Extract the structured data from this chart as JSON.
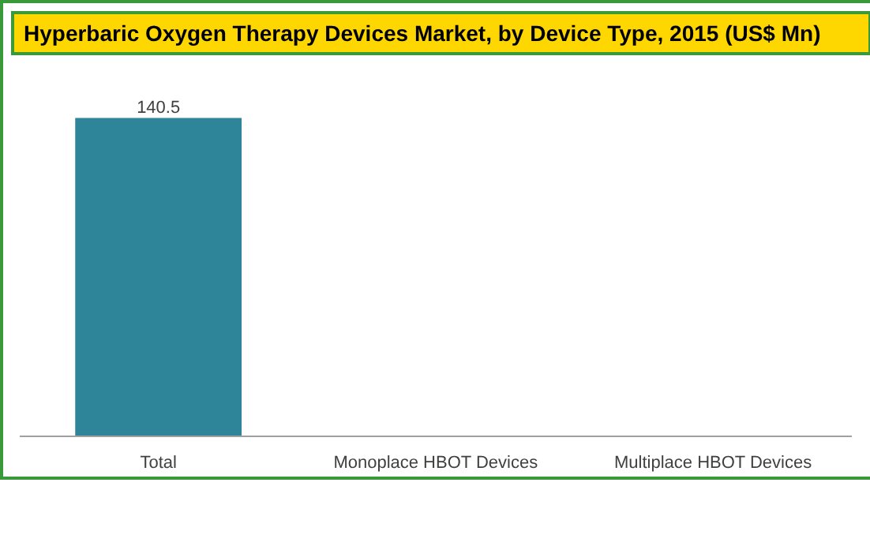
{
  "chart_data": {
    "type": "bar",
    "title": "Hyperbaric Oxygen Therapy Devices Market, by Device Type, 2015 (US$ Mn)",
    "categories": [
      "Total",
      "Monoplace HBOT Devices",
      "Multiplace HBOT Devices"
    ],
    "values": [
      140.5,
      null,
      null
    ],
    "color": "#2e8499",
    "data_labels": true,
    "grid": false
  }
}
